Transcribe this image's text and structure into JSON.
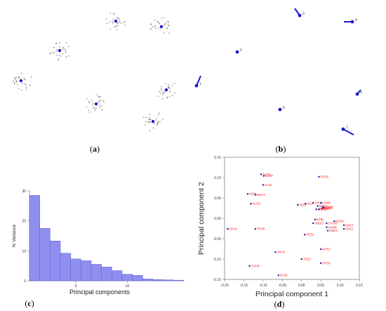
{
  "captions": {
    "a": "a",
    "b": "b",
    "c": "c",
    "d": "d"
  },
  "panel_a": {
    "clusters": [
      {
        "label": "1"
      },
      {
        "label": "2"
      },
      {
        "label": "3"
      },
      {
        "label": "4"
      },
      {
        "label": "5"
      },
      {
        "label": "6"
      },
      {
        "label": "7"
      },
      {
        "label": "8"
      }
    ]
  },
  "panel_b": {
    "markers": [
      {
        "label": "1"
      },
      {
        "label": "2"
      },
      {
        "label": "3"
      },
      {
        "label": "4"
      },
      {
        "label": "5"
      },
      {
        "label": "6"
      },
      {
        "label": "7"
      }
    ]
  },
  "chart_data": [
    {
      "type": "bar",
      "xlabel": "Principal components",
      "ylabel": "% Variance",
      "xticks": [
        5,
        10
      ],
      "yticks": [
        0,
        10,
        20,
        30
      ],
      "ylim": [
        0,
        30
      ],
      "xlim": [
        0.5,
        15.5
      ],
      "categories": [
        1,
        2,
        3,
        4,
        5,
        6,
        7,
        8,
        9,
        10,
        11,
        12,
        13,
        14,
        15
      ],
      "values": [
        28.5,
        17.5,
        13.3,
        9.2,
        7.3,
        6.7,
        5.5,
        4.6,
        3.4,
        2.2,
        1.8,
        0.6,
        0.4,
        0.3,
        0.2
      ],
      "grid": false,
      "color": "#8f8ff0"
    },
    {
      "type": "scatter",
      "xlabel": "Principal component 1",
      "ylabel": "Principal component 2",
      "xlim": [
        -0.2,
        0.15
      ],
      "ylim": [
        -0.15,
        0.15
      ],
      "xticks": [
        -0.2,
        -0.15,
        -0.1,
        -0.05,
        0,
        0.05,
        0.1,
        0.15
      ],
      "xtick_labels": [
        "-0.20",
        "-0.15",
        "-0.10",
        "-0.05",
        "0.00",
        "0.05",
        "0.10",
        "0.15"
      ],
      "yticks": [
        -0.15,
        -0.1,
        -0.05,
        0,
        0.05,
        0.1,
        0.15
      ],
      "ytick_labels": [
        "-0.15",
        "-0.10",
        "-0.05",
        "0.00",
        "0.05",
        "0.10",
        "0.15"
      ],
      "point_color": "#1a1aa0",
      "label_color": "#ff2222",
      "points": [
        {
          "label": "4LDE",
          "x": -0.105,
          "y": 0.108
        },
        {
          "label": "4LDF",
          "x": -0.098,
          "y": 0.104
        },
        {
          "label": "4LOL",
          "x": -0.1,
          "y": 0.082
        },
        {
          "label": "4QKL",
          "x": -0.14,
          "y": 0.06
        },
        {
          "label": "4MXT",
          "x": -0.12,
          "y": 0.058
        },
        {
          "label": "4LDO",
          "x": -0.132,
          "y": 0.036
        },
        {
          "label": "3PD5",
          "x": 0.045,
          "y": 0.102
        },
        {
          "label": "6E67",
          "x": -0.01,
          "y": 0.033
        },
        {
          "label": "4DJ",
          "x": 0.01,
          "y": 0.036
        },
        {
          "label": "2RH1",
          "x": 0.03,
          "y": 0.038
        },
        {
          "label": "3SN6",
          "x": 0.05,
          "y": 0.038
        },
        {
          "label": "5D5A",
          "x": 0.042,
          "y": 0.03
        },
        {
          "label": "4GBR",
          "x": 0.055,
          "y": 0.028
        },
        {
          "label": "6PS6",
          "x": 0.058,
          "y": 0.026
        },
        {
          "label": "2R4R",
          "x": 0.045,
          "y": 0.022
        },
        {
          "label": "6N48",
          "x": 0.052,
          "y": 0.024
        },
        {
          "label": "5D5B",
          "x": 0.038,
          "y": 0.022
        },
        {
          "label": "5D6L",
          "x": 0.035,
          "y": -0.003
        },
        {
          "label": "6OBA",
          "x": 0.085,
          "y": -0.007
        },
        {
          "label": "3D4S",
          "x": 0.11,
          "y": -0.017
        },
        {
          "label": "3NYA",
          "x": 0.11,
          "y": -0.026
        },
        {
          "label": "2YCW",
          "x": 0.065,
          "y": -0.012
        },
        {
          "label": "4GBR",
          "x": 0.065,
          "y": -0.022
        },
        {
          "label": "5NDZ",
          "x": 0.068,
          "y": -0.03
        },
        {
          "label": "5NDD",
          "x": 0.03,
          "y": -0.012
        },
        {
          "label": "2R4S",
          "x": -0.192,
          "y": -0.026
        },
        {
          "label": "7R4R",
          "x": -0.12,
          "y": -0.026
        },
        {
          "label": "5PS2",
          "x": 0.008,
          "y": -0.04
        },
        {
          "label": "5PRZ",
          "x": 0.05,
          "y": -0.076
        },
        {
          "label": "3NY8",
          "x": -0.068,
          "y": -0.083
        },
        {
          "label": "7BZ2",
          "x": 0.0,
          "y": -0.1
        },
        {
          "label": "5PS0",
          "x": 0.05,
          "y": -0.11
        },
        {
          "label": "7DHR",
          "x": -0.135,
          "y": -0.117
        },
        {
          "label": "3NJ8",
          "x": -0.06,
          "y": -0.14
        }
      ]
    }
  ]
}
